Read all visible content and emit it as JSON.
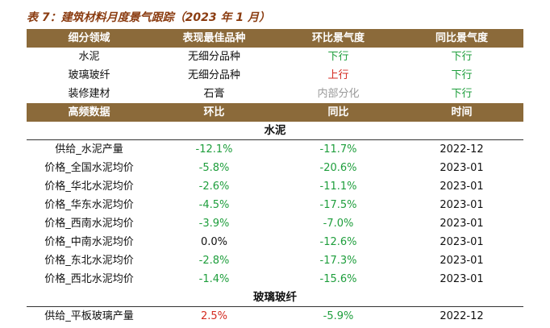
{
  "title": "表 7：建筑材料月度景气跟踪（2023 年 1 月）",
  "colors": {
    "header_bg": "#8b6a3a",
    "title": "#8b3d12",
    "down_green": "#1e9e3c",
    "up_red": "#d42a20",
    "neutral_gray": "#9a9a9a"
  },
  "table1": {
    "headers": [
      "细分领域",
      "表现最佳品种",
      "环比景气度",
      "同比景气度"
    ],
    "rows": [
      {
        "field": "水泥",
        "best": "无细分品种",
        "mom": "下行",
        "mom_status": "down",
        "yoy": "下行",
        "yoy_status": "down"
      },
      {
        "field": "玻璃玻纤",
        "best": "无细分品种",
        "mom": "上行",
        "mom_status": "up",
        "yoy": "下行",
        "yoy_status": "down"
      },
      {
        "field": "装修建材",
        "best": "石膏",
        "mom": "内部分化",
        "mom_status": "neutral",
        "yoy": "下行",
        "yoy_status": "down"
      }
    ]
  },
  "table2": {
    "headers": [
      "高频数据",
      "环比",
      "同比",
      "时间"
    ],
    "sections": [
      {
        "name": "水泥",
        "rows": [
          {
            "item": "供给_水泥产量",
            "mom": "-12.1%",
            "mom_status": "down",
            "yoy": "-11.7%",
            "yoy_status": "down",
            "time": "2022-12"
          },
          {
            "item": "价格_全国水泥均价",
            "mom": "-5.8%",
            "mom_status": "down",
            "yoy": "-20.6%",
            "yoy_status": "down",
            "time": "2023-01"
          },
          {
            "item": "价格_华北水泥均价",
            "mom": "-2.6%",
            "mom_status": "down",
            "yoy": "-11.1%",
            "yoy_status": "down",
            "time": "2023-01"
          },
          {
            "item": "价格_华东水泥均价",
            "mom": "-4.5%",
            "mom_status": "down",
            "yoy": "-17.5%",
            "yoy_status": "down",
            "time": "2023-01"
          },
          {
            "item": "价格_西南水泥均价",
            "mom": "-3.9%",
            "mom_status": "down",
            "yoy": "-7.0%",
            "yoy_status": "down",
            "time": "2023-01"
          },
          {
            "item": "价格_中南水泥均价",
            "mom": "0.0%",
            "mom_status": "plain",
            "yoy": "-12.6%",
            "yoy_status": "down",
            "time": "2023-01"
          },
          {
            "item": "价格_东北水泥均价",
            "mom": "-2.8%",
            "mom_status": "down",
            "yoy": "-17.3%",
            "yoy_status": "down",
            "time": "2023-01"
          },
          {
            "item": "价格_西北水泥均价",
            "mom": "-1.4%",
            "mom_status": "down",
            "yoy": "-15.6%",
            "yoy_status": "down",
            "time": "2023-01"
          }
        ]
      },
      {
        "name": "玻璃玻纤",
        "rows": [
          {
            "item": "供给_平板玻璃产量",
            "mom": "2.5%",
            "mom_status": "up",
            "yoy": "-5.9%",
            "yoy_status": "down",
            "time": "2022-12"
          }
        ]
      }
    ]
  }
}
